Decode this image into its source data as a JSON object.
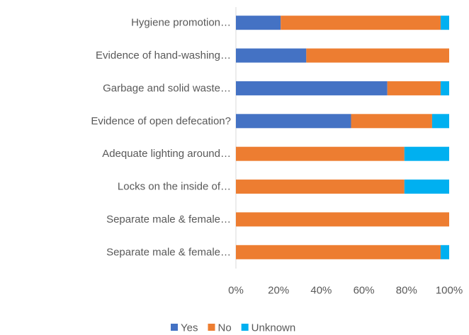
{
  "chart_data": {
    "type": "stacked-bar-horizontal",
    "categories": [
      "Hygiene promotion…",
      "Evidence of hand-washing…",
      "Garbage and solid waste…",
      "Evidence of open defecation?",
      "Adequate lighting around…",
      "Locks on the inside of…",
      "Separate male & female…",
      "Separate male & female…"
    ],
    "series": [
      {
        "name": "Yes",
        "color": "#4472c4",
        "values": [
          21,
          33,
          71,
          54,
          0,
          0,
          0,
          0
        ]
      },
      {
        "name": "No",
        "color": "#ed7d31",
        "values": [
          75,
          67,
          25,
          38,
          79,
          79,
          100,
          96
        ]
      },
      {
        "name": "Unknown",
        "color": "#00b0f0",
        "values": [
          4,
          0,
          4,
          8,
          21,
          21,
          0,
          4
        ]
      }
    ],
    "xlim": [
      0,
      100
    ],
    "xticks": [
      {
        "value": 0,
        "label": "0%"
      },
      {
        "value": 20,
        "label": "20%"
      },
      {
        "value": 40,
        "label": "40%"
      },
      {
        "value": 60,
        "label": "60%"
      },
      {
        "value": 80,
        "label": "80%"
      },
      {
        "value": 100,
        "label": "100%"
      }
    ],
    "legend": "bottom"
  }
}
